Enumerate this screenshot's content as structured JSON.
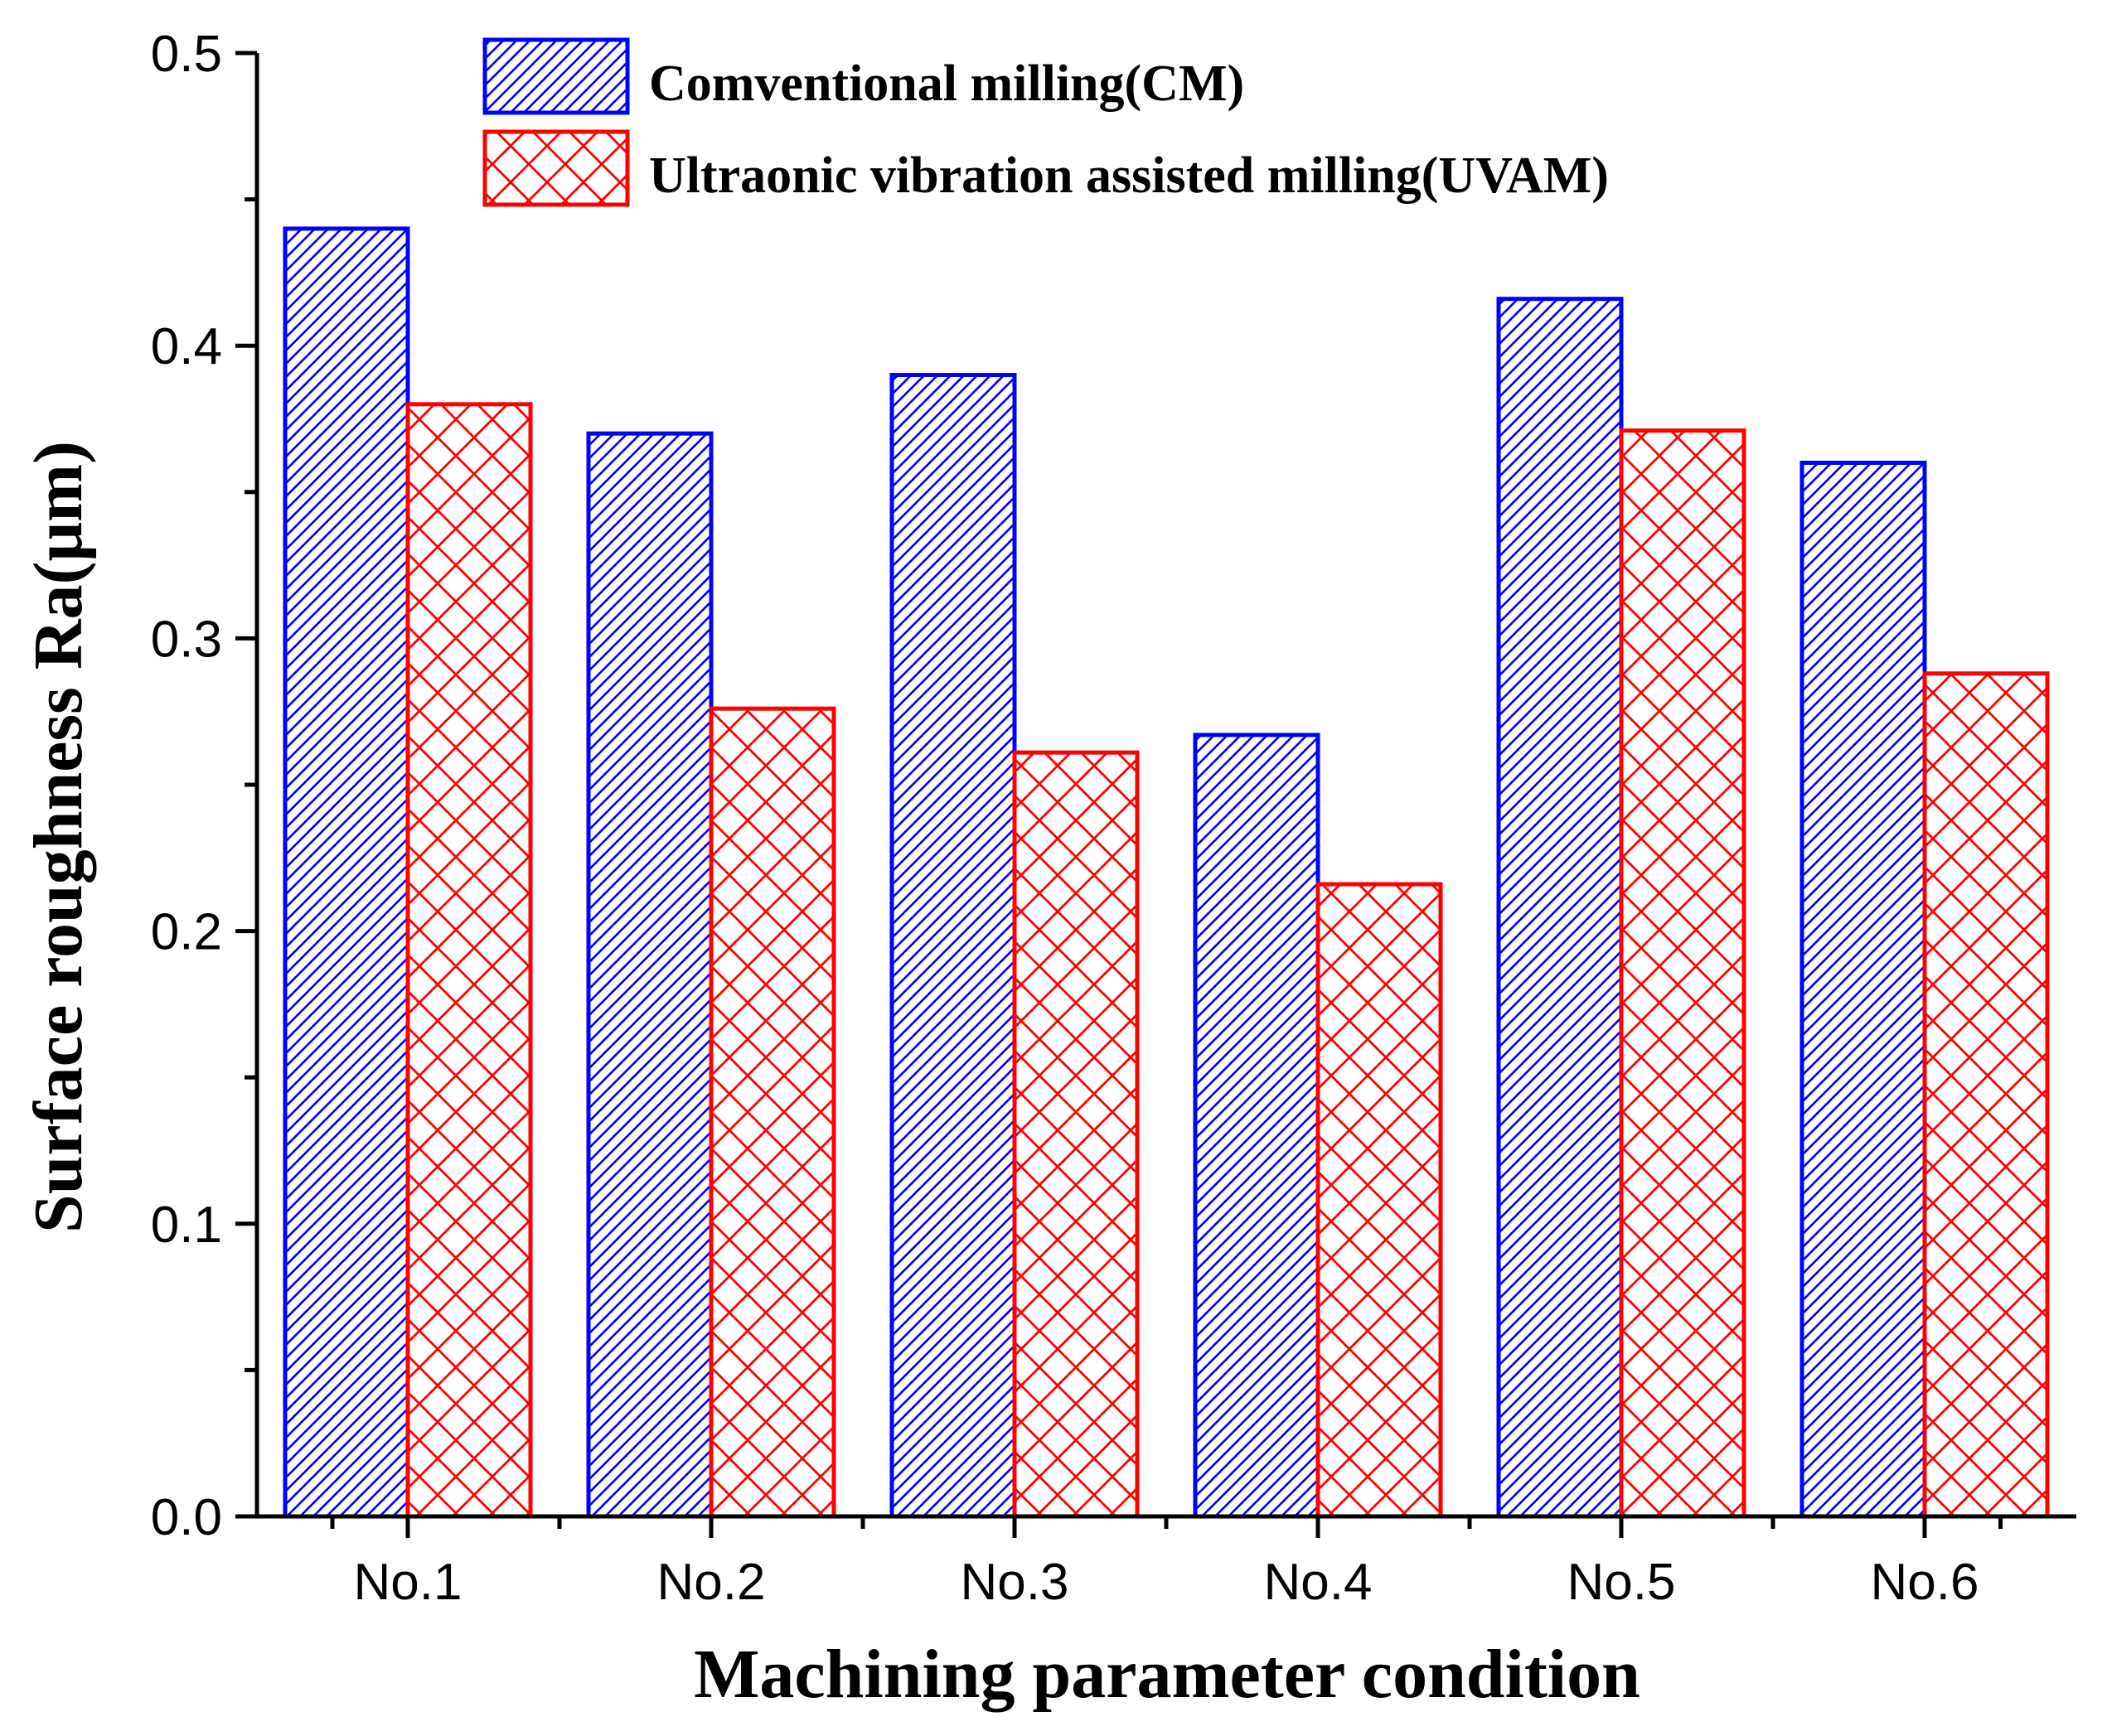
{
  "chart_data": {
    "type": "bar",
    "title": "",
    "xlabel": "Machining parameter condition",
    "ylabel": "Surface roughness Ra(μm)",
    "categories": [
      "No.1",
      "No.2",
      "No.3",
      "No.4",
      "No.5",
      "No.6"
    ],
    "ylim": [
      0.0,
      0.5
    ],
    "yticks": [
      "0.0",
      "0.1",
      "0.2",
      "0.3",
      "0.4",
      "0.5"
    ],
    "grid": false,
    "legend_position": "top-center",
    "series": [
      {
        "name": "Comventional milling(CM)",
        "color": "#0000ff",
        "pattern": "diagonal-hatch",
        "values": [
          0.44,
          0.37,
          0.39,
          0.267,
          0.416,
          0.36
        ]
      },
      {
        "name": "Ultraonic vibration assisted milling(UVAM)",
        "color": "#ff0000",
        "pattern": "cross-hatch",
        "values": [
          0.38,
          0.276,
          0.261,
          0.216,
          0.371,
          0.288
        ]
      }
    ]
  }
}
